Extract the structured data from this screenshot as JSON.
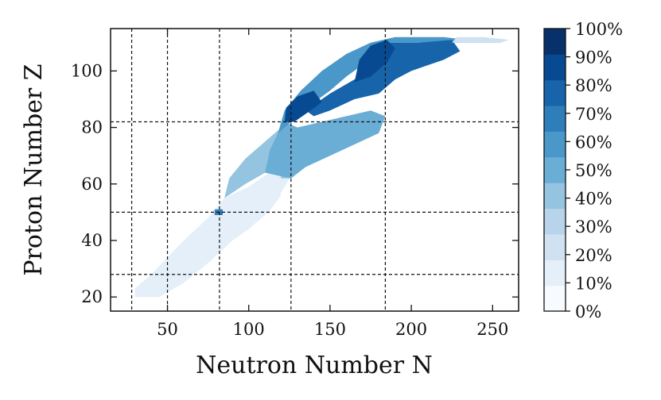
{
  "chart_data": {
    "type": "heatmap",
    "title": "",
    "xlabel": "Neutron Number N",
    "ylabel": "Proton Number Z",
    "xlim": [
      15,
      266
    ],
    "ylim": [
      15,
      115
    ],
    "xticks": [
      50,
      100,
      150,
      200,
      250
    ],
    "yticks": [
      20,
      40,
      60,
      80,
      100
    ],
    "magic_numbers_N": [
      28,
      50,
      82,
      126,
      184
    ],
    "magic_numbers_Z": [
      28,
      50,
      82
    ],
    "colorbar": {
      "levels": [
        "0%",
        "10%",
        "20%",
        "30%",
        "40%",
        "50%",
        "60%",
        "70%",
        "80%",
        "90%",
        "100%"
      ],
      "colors": [
        "#f7fbff",
        "#e4eff9",
        "#d0e1f2",
        "#b7d4ea",
        "#94c4df",
        "#6aadd5",
        "#4a98c9",
        "#2e7ebc",
        "#1764ab",
        "#084a91",
        "#08306b"
      ]
    },
    "regions": [
      {
        "name": "light-low",
        "level": 5,
        "points": [
          [
            30,
            20
          ],
          [
            45,
            20
          ],
          [
            60,
            25
          ],
          [
            75,
            32
          ],
          [
            90,
            40
          ],
          [
            105,
            47
          ],
          [
            115,
            52
          ],
          [
            125,
            62
          ],
          [
            120,
            66
          ],
          [
            110,
            63
          ],
          [
            100,
            59
          ],
          [
            85,
            55
          ],
          [
            75,
            48
          ],
          [
            60,
            40
          ],
          [
            50,
            34
          ],
          [
            40,
            28
          ],
          [
            30,
            23
          ]
        ]
      },
      {
        "name": "light-mid",
        "level": 10,
        "points": [
          [
            35,
            21
          ],
          [
            55,
            25
          ],
          [
            70,
            30
          ],
          [
            85,
            38
          ],
          [
            100,
            44
          ],
          [
            112,
            50
          ],
          [
            120,
            56
          ],
          [
            115,
            60
          ],
          [
            100,
            58
          ],
          [
            85,
            52
          ],
          [
            70,
            44
          ],
          [
            55,
            36
          ],
          [
            45,
            30
          ],
          [
            38,
            25
          ]
        ]
      },
      {
        "name": "sphere-80",
        "level": 35,
        "points": [
          [
            85,
            55
          ],
          [
            98,
            60
          ],
          [
            110,
            64
          ],
          [
            118,
            66
          ],
          [
            120,
            62
          ],
          [
            126,
            62
          ],
          [
            127,
            74
          ],
          [
            126,
            80
          ],
          [
            118,
            79
          ],
          [
            108,
            74
          ],
          [
            98,
            69
          ],
          [
            88,
            62
          ]
        ]
      },
      {
        "name": "gap-126",
        "level": 50,
        "points": [
          [
            110,
            64
          ],
          [
            126,
            62
          ],
          [
            135,
            66
          ],
          [
            150,
            70
          ],
          [
            165,
            74
          ],
          [
            180,
            78
          ],
          [
            184,
            84
          ],
          [
            175,
            86
          ],
          [
            160,
            84
          ],
          [
            145,
            82
          ],
          [
            130,
            80
          ],
          [
            122,
            82
          ],
          [
            118,
            78
          ],
          [
            113,
            72
          ]
        ]
      },
      {
        "name": "deformed-upper",
        "level": 60,
        "points": [
          [
            118,
            78
          ],
          [
            126,
            82
          ],
          [
            138,
            88
          ],
          [
            150,
            93
          ],
          [
            160,
            98
          ],
          [
            172,
            103
          ],
          [
            185,
            110
          ],
          [
            200,
            110
          ],
          [
            230,
            110
          ],
          [
            255,
            110
          ],
          [
            250,
            111
          ],
          [
            235,
            111
          ],
          [
            220,
            112
          ],
          [
            205,
            112
          ],
          [
            190,
            112
          ],
          [
            175,
            110
          ],
          [
            160,
            106
          ],
          [
            145,
            100
          ],
          [
            132,
            93
          ],
          [
            122,
            86
          ]
        ]
      },
      {
        "name": "upper-band",
        "level": 75,
        "points": [
          [
            135,
            86
          ],
          [
            150,
            92
          ],
          [
            165,
            97
          ],
          [
            178,
            102
          ],
          [
            185,
            110
          ],
          [
            205,
            110
          ],
          [
            225,
            111
          ],
          [
            230,
            107
          ],
          [
            220,
            104
          ],
          [
            210,
            102
          ],
          [
            200,
            100
          ],
          [
            190,
            97
          ],
          [
            180,
            92
          ],
          [
            165,
            90
          ],
          [
            150,
            86
          ],
          [
            140,
            84
          ]
        ]
      },
      {
        "name": "dark-core-1",
        "level": 92,
        "points": [
          [
            122,
            82
          ],
          [
            128,
            82
          ],
          [
            138,
            86
          ],
          [
            145,
            89
          ],
          [
            140,
            93
          ],
          [
            130,
            91
          ],
          [
            123,
            87
          ]
        ]
      },
      {
        "name": "dark-core-2",
        "level": 92,
        "points": [
          [
            165,
            96
          ],
          [
            175,
            98
          ],
          [
            185,
            103
          ],
          [
            190,
            108
          ],
          [
            185,
            111
          ],
          [
            175,
            109
          ],
          [
            168,
            104
          ]
        ]
      },
      {
        "name": "tail",
        "level": 20,
        "points": [
          [
            225,
            110
          ],
          [
            255,
            110
          ],
          [
            260,
            111
          ],
          [
            245,
            112
          ],
          [
            228,
            112
          ]
        ]
      },
      {
        "name": "islet",
        "level": 70,
        "points": [
          [
            79,
            51
          ],
          [
            84,
            51
          ],
          [
            84,
            49
          ],
          [
            79,
            49
          ]
        ]
      }
    ]
  }
}
